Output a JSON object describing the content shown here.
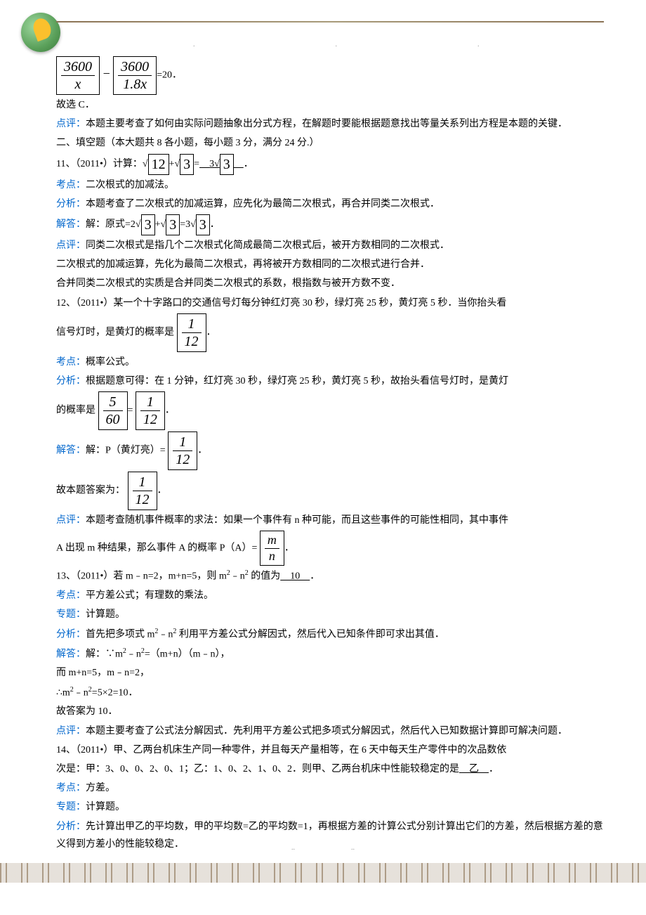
{
  "header": {
    "dots": [
      ".",
      ".",
      "."
    ]
  },
  "eq1": {
    "frac1_num": "3600",
    "frac1_den": "x",
    "op": "−",
    "frac2_num": "3600",
    "frac2_den": "1.8x",
    "tail": "=20．"
  },
  "p1": "故选 C．",
  "p2_label": "点评：",
  "p2": "本题主要考查了如何由实际问题抽象出分式方程，在解题时要能根据题意找出等量关系列出方程是本题的关键．",
  "p3": "二、填空题（本大题共 8 各小题，每小题 3 分，满分 24 分.）",
  "q11": {
    "pre": "11、（2011•）计算：",
    "sqrt_a": "12",
    "plus": "+",
    "sqrt_b": "3",
    "eq": "=",
    "ans_coef": "3",
    "sqrt_c": "3",
    "tail": "．"
  },
  "q11_kd_label": "考点：",
  "q11_kd": "二次根式的加减法。",
  "q11_fx_label": "分析：",
  "q11_fx": "本题考查了二次根式的加减运算，应先化为最简二次根式，再合并同类二次根式．",
  "q11_jd_label": "解答：",
  "q11_jd_pre": "解：原式=2",
  "q11_sqrt_d": "3",
  "q11_plus2": "+",
  "q11_sqrt_e": "3",
  "q11_eq2": "=3",
  "q11_sqrt_f": "3",
  "q11_jd_tail": "．",
  "q11_dp_label": "点评：",
  "q11_dp1": "同类二次根式是指几个二次根式化简成最简二次根式后，被开方数相同的二次根式．",
  "q11_dp2": "二次根式的加减运算，先化为最简二次根式，再将被开方数相同的二次根式进行合并．",
  "q11_dp3": "合并同类二次根式的实质是合并同类二次根式的系数，根指数与被开方数不变．",
  "q12": {
    "line1": "12、（2011•）某一个十字路口的交通信号灯每分钟红灯亮 30 秒，绿灯亮 25 秒，黄灯亮 5 秒．当你抬头看",
    "line2_pre": "信号灯时，是黄灯的概率是",
    "frac_num": "1",
    "frac_den": "12",
    "line2_tail": "．"
  },
  "q12_kd_label": "考点：",
  "q12_kd": "概率公式。",
  "q12_fx_label": "分析：",
  "q12_fx1": "根据题意可得：在 1 分钟，红灯亮 30 秒，绿灯亮 25 秒，黄灯亮 5 秒，故抬头看信号灯时，是黄灯",
  "q12_fx2_pre": "的概率是",
  "q12_frac_a_num": "5",
  "q12_frac_a_den": "60",
  "q12_eq": "=",
  "q12_frac_b_num": "1",
  "q12_frac_b_den": "12",
  "q12_fx2_tail": "．",
  "q12_jd_label": "解答：",
  "q12_jd_pre": "解：P（黄灯亮）=",
  "q12_frac_c_num": "1",
  "q12_frac_c_den": "12",
  "q12_jd_tail": "．",
  "q12_ans_pre": "故本题答案为：",
  "q12_frac_d_num": "1",
  "q12_frac_d_den": "12",
  "q12_ans_tail": "．",
  "q12_dp_label": "点评：",
  "q12_dp1": "本题考查随机事件概率的求法：如果一个事件有 n 种可能，而且这些事件的可能性相同，其中事件",
  "q12_dp2_pre": "A 出现 m 种结果，那么事件 A 的概率 P（A）=",
  "q12_frac_e_num": "m",
  "q12_frac_e_den": "n",
  "q12_dp2_tail": "．",
  "q13": {
    "text_pre": "13、（2011•）若 m﹣n=2，m+n=5，则 m",
    "sup1": "2",
    "mid1": "﹣n",
    "sup2": "2",
    "mid2": " 的值为",
    "ans": "　10　",
    "tail": "．"
  },
  "q13_kd_label": "考点：",
  "q13_kd": "平方差公式；有理数的乘法。",
  "q13_zt_label": "专题：",
  "q13_zt": "计算题。",
  "q13_fx_label": "分析：",
  "q13_fx_pre": "首先把多项式 m",
  "q13_fx_sup1": "2",
  "q13_fx_mid": "﹣n",
  "q13_fx_sup2": "2",
  "q13_fx_tail": " 利用平方差公式分解因式，然后代入已知条件即可求出其值．",
  "q13_jd_label": "解答：",
  "q13_jd1_pre": "解：∵m",
  "q13_jd1_sup1": "2",
  "q13_jd1_mid": "﹣n",
  "q13_jd1_sup2": "2",
  "q13_jd1_tail": "=（m+n）（m﹣n），",
  "q13_jd2": "而 m+n=5，m﹣n=2，",
  "q13_jd3_pre": "∴m",
  "q13_jd3_sup1": "2",
  "q13_jd3_mid": "﹣n",
  "q13_jd3_sup2": "2",
  "q13_jd3_tail": "=5×2=10．",
  "q13_jd4": "故答案为 10．",
  "q13_dp_label": "点评：",
  "q13_dp": "本题主要考查了公式法分解因式．先利用平方差公式把多项式分解因式，然后代入已知数据计算即可解决问题．",
  "q14": {
    "line1": "14、（2011•）甲、乙两台机床生产同一种零件，并且每天产量相等，在 6 天中每天生产零件中的次品数依",
    "line2_pre": "次是：甲：3、0、0、2、0、1；乙：1、0、2、1、0、2．则甲、乙两台机床中性能较稳定的是",
    "ans": "　乙　",
    "line2_tail": "．"
  },
  "q14_kd_label": "考点：",
  "q14_kd": "方差。",
  "q14_zt_label": "专题：",
  "q14_zt": "计算题。",
  "q14_fx_label": "分析：",
  "q14_fx": "先计算出甲乙的平均数，甲的平均数=乙的平均数=1，再根据方差的计算公式分别计算出它们的方差，然后根据方差的意义得到方差小的性能较稳定．",
  "footer": {
    "dots": [
      "..",
      ".."
    ]
  },
  "colors": {
    "link": "#0066cc",
    "text": "#000000",
    "border": "#8b7355"
  }
}
